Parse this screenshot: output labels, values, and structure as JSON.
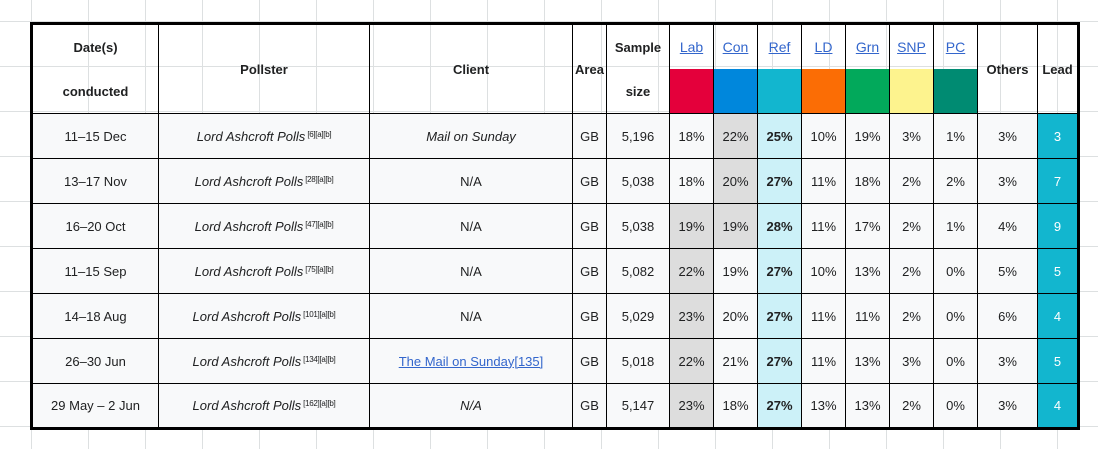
{
  "header": {
    "date_line1": "Date(s)",
    "date_line2": "conducted",
    "pollster": "Pollster",
    "client": "Client",
    "area": "Area",
    "sample_line1": "Sample",
    "sample_line2": "size",
    "parties": [
      {
        "label": "Lab",
        "color": "#E4003B"
      },
      {
        "label": "Con",
        "color": "#0087DC"
      },
      {
        "label": "Ref",
        "color": "#12B6CF"
      },
      {
        "label": "LD",
        "color": "#FB6D05"
      },
      {
        "label": "Grn",
        "color": "#02A95B"
      },
      {
        "label": "SNP",
        "color": "#FDF38E"
      },
      {
        "label": "PC",
        "color": "#008B72"
      }
    ],
    "others": "Others",
    "lead": "Lead"
  },
  "colors": {
    "row_bg": "#F8F9FA",
    "link_blue": "#3366CC",
    "grid_line": "#DDE0E1",
    "leader_cell_bg": "#CCF1F8",
    "second_cell_bg": "#DDDDDD",
    "lead_col_bg": "#12B6CF"
  },
  "rows": [
    {
      "date": "11–15 Dec",
      "pollster": "Lord Ashcroft Polls",
      "refs": "[6][a][b]",
      "client": {
        "text": "Mail on Sunday",
        "italic": true,
        "link": false
      },
      "area": "GB",
      "sample": "5,196",
      "party_values": [
        "18%",
        "22%",
        "25%",
        "10%",
        "19%",
        "3%",
        "1%"
      ],
      "leader_index": 2,
      "second_indices": [
        1
      ],
      "others": "3%",
      "lead": "3"
    },
    {
      "date": "13–17 Nov",
      "pollster": "Lord Ashcroft Polls",
      "refs": "[28][a][b]",
      "client": {
        "text": "N/A",
        "italic": false,
        "link": false
      },
      "area": "GB",
      "sample": "5,038",
      "party_values": [
        "18%",
        "20%",
        "27%",
        "11%",
        "18%",
        "2%",
        "2%"
      ],
      "leader_index": 2,
      "second_indices": [
        1
      ],
      "others": "3%",
      "lead": "7"
    },
    {
      "date": "16–20 Oct",
      "pollster": "Lord Ashcroft Polls",
      "refs": "[47][a][b]",
      "client": {
        "text": "N/A",
        "italic": false,
        "link": false
      },
      "area": "GB",
      "sample": "5,038",
      "party_values": [
        "19%",
        "19%",
        "28%",
        "11%",
        "17%",
        "2%",
        "1%"
      ],
      "leader_index": 2,
      "second_indices": [
        0,
        1
      ],
      "others": "4%",
      "lead": "9"
    },
    {
      "date": "11–15 Sep",
      "pollster": "Lord Ashcroft Polls",
      "refs": "[75][a][b]",
      "client": {
        "text": "N/A",
        "italic": false,
        "link": false
      },
      "area": "GB",
      "sample": "5,082",
      "party_values": [
        "22%",
        "19%",
        "27%",
        "10%",
        "13%",
        "2%",
        "0%"
      ],
      "leader_index": 2,
      "second_indices": [
        0
      ],
      "others": "5%",
      "lead": "5"
    },
    {
      "date": "14–18 Aug",
      "pollster": "Lord Ashcroft Polls",
      "refs": "[101][a][b]",
      "client": {
        "text": "N/A",
        "italic": false,
        "link": false
      },
      "area": "GB",
      "sample": "5,029",
      "party_values": [
        "23%",
        "20%",
        "27%",
        "11%",
        "11%",
        "2%",
        "0%"
      ],
      "leader_index": 2,
      "second_indices": [
        0
      ],
      "others": "6%",
      "lead": "4"
    },
    {
      "date": "26–30 Jun",
      "pollster": "Lord Ashcroft Polls",
      "refs": "[134][a][b]",
      "client": {
        "text": "The Mail on Sunday[135]",
        "italic": false,
        "link": true
      },
      "area": "GB",
      "sample": "5,018",
      "party_values": [
        "22%",
        "21%",
        "27%",
        "11%",
        "13%",
        "3%",
        "0%"
      ],
      "leader_index": 2,
      "second_indices": [
        0
      ],
      "others": "3%",
      "lead": "5"
    },
    {
      "date": "29 May – 2 Jun",
      "pollster": "Lord Ashcroft Polls",
      "refs": "[162][a][b]",
      "client": {
        "text": "N/A",
        "italic": true,
        "link": false
      },
      "area": "GB",
      "sample": "5,147",
      "party_values": [
        "23%",
        "18%",
        "27%",
        "13%",
        "13%",
        "2%",
        "0%"
      ],
      "leader_index": 2,
      "second_indices": [
        0
      ],
      "others": "3%",
      "lead": "4"
    }
  ]
}
